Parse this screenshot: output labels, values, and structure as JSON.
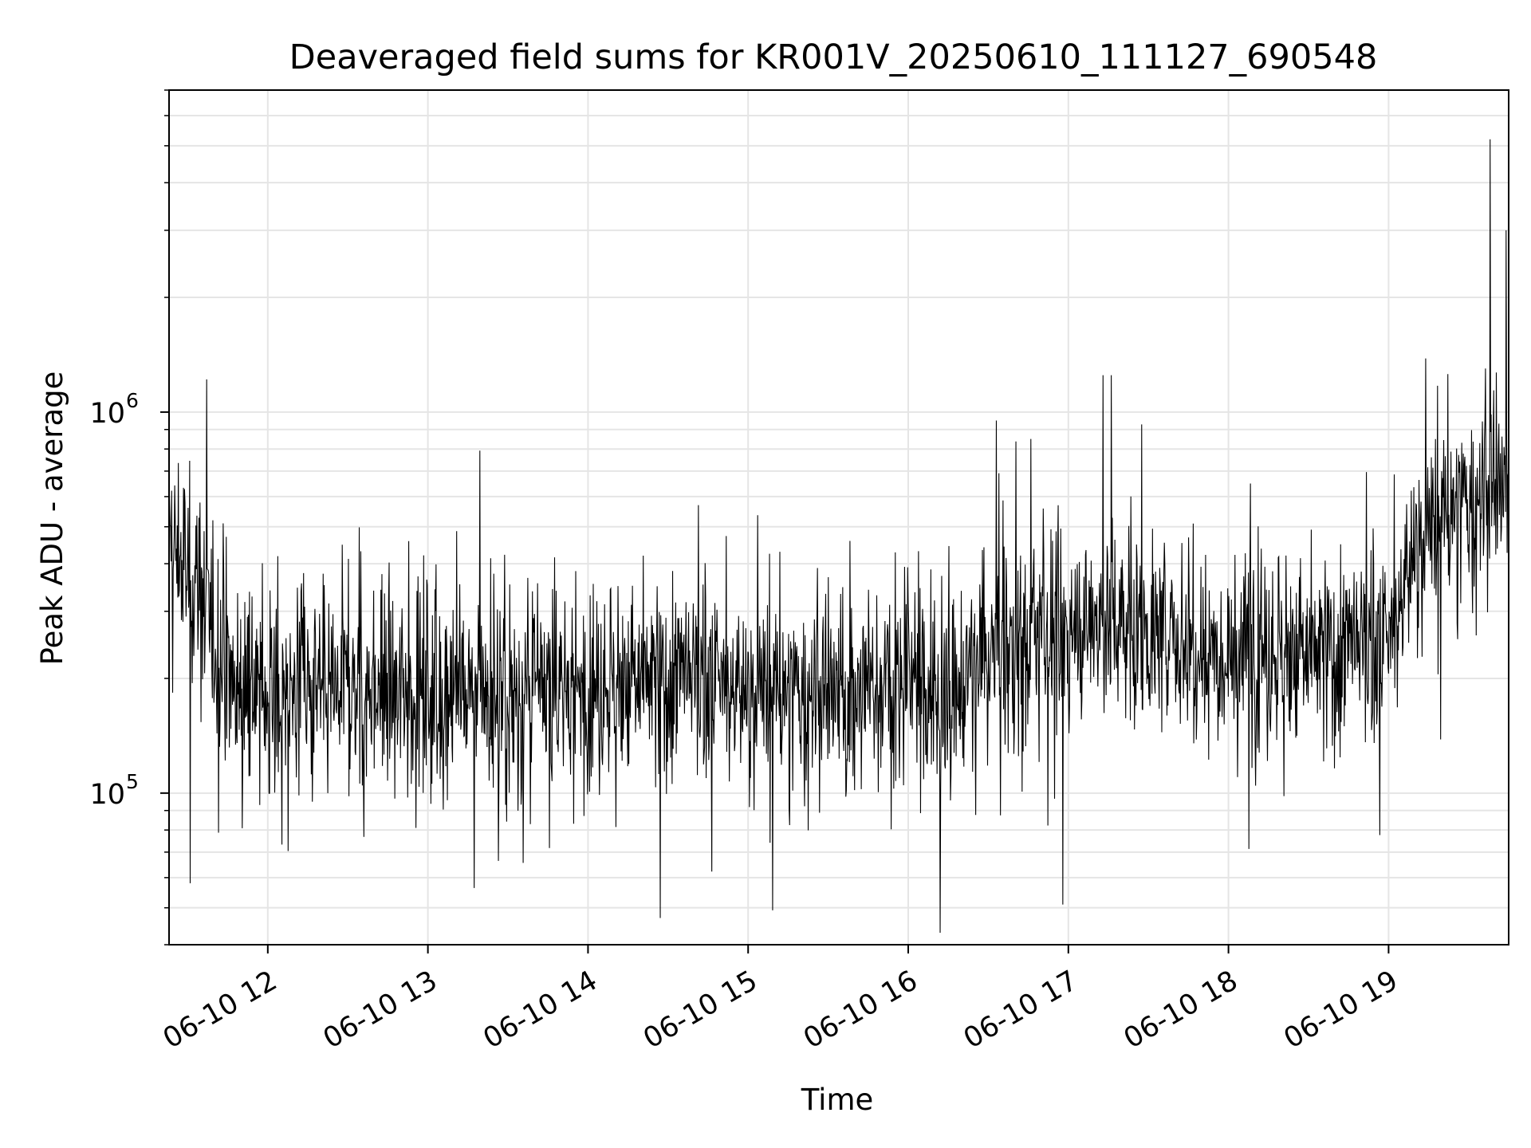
{
  "chart_data": {
    "type": "line",
    "title": "Deaveraged field sums for KR001V_20250610_111127_690548",
    "xlabel": "Time",
    "ylabel": "Peak ADU - average",
    "yscale": "log",
    "xlim": [
      "2025-06-10 11:23",
      "2025-06-10 19:45"
    ],
    "ylim": [
      40000,
      7000000
    ],
    "grid": true,
    "line_color": "#000000",
    "grid_color": "#e5e5e5",
    "x_ticks": [
      {
        "label": "06-10 12",
        "value": "2025-06-10 12:00"
      },
      {
        "label": "06-10 13",
        "value": "2025-06-10 13:00"
      },
      {
        "label": "06-10 14",
        "value": "2025-06-10 14:00"
      },
      {
        "label": "06-10 15",
        "value": "2025-06-10 15:00"
      },
      {
        "label": "06-10 16",
        "value": "2025-06-10 16:00"
      },
      {
        "label": "06-10 17",
        "value": "2025-06-10 17:00"
      },
      {
        "label": "06-10 18",
        "value": "2025-06-10 18:00"
      },
      {
        "label": "06-10 19",
        "value": "2025-06-10 19:00"
      }
    ],
    "y_ticks": [
      {
        "base": "10",
        "exp": "5",
        "value": 100000
      },
      {
        "base": "10",
        "exp": "6",
        "value": 1000000
      }
    ],
    "series": [
      {
        "points": [
          {
            "x": "2025-06-10 11:23",
            "y": 450000
          },
          {
            "x": "2025-06-10 11:30",
            "y": 380000
          },
          {
            "x": "2025-06-10 11:38",
            "y": 290000
          },
          {
            "x": "2025-06-10 11:45",
            "y": 200000
          },
          {
            "x": "2025-06-10 12:00",
            "y": 180000
          },
          {
            "x": "2025-06-10 12:30",
            "y": 190000
          },
          {
            "x": "2025-06-10 13:00",
            "y": 185000
          },
          {
            "x": "2025-06-10 13:30",
            "y": 175000
          },
          {
            "x": "2025-06-10 14:00",
            "y": 190000
          },
          {
            "x": "2025-06-10 14:30",
            "y": 200000
          },
          {
            "x": "2025-06-10 15:00",
            "y": 185000
          },
          {
            "x": "2025-06-10 15:30",
            "y": 175000
          },
          {
            "x": "2025-06-10 16:00",
            "y": 200000
          },
          {
            "x": "2025-06-10 16:15",
            "y": 170000
          },
          {
            "x": "2025-06-10 16:30",
            "y": 230000
          },
          {
            "x": "2025-06-10 17:00",
            "y": 270000
          },
          {
            "x": "2025-06-10 17:15",
            "y": 290000
          },
          {
            "x": "2025-06-10 17:30",
            "y": 260000
          },
          {
            "x": "2025-06-10 18:00",
            "y": 240000
          },
          {
            "x": "2025-06-10 18:30",
            "y": 230000
          },
          {
            "x": "2025-06-10 19:00",
            "y": 240000
          },
          {
            "x": "2025-06-10 19:10",
            "y": 450000
          },
          {
            "x": "2025-06-10 19:25",
            "y": 550000
          },
          {
            "x": "2025-06-10 19:45",
            "y": 620000
          }
        ],
        "spikes_high": [
          {
            "x": "2025-06-10 16:33",
            "y": 950000
          },
          {
            "x": "2025-06-10 16:46",
            "y": 850000
          },
          {
            "x": "2025-06-10 17:13",
            "y": 1250000
          },
          {
            "x": "2025-06-10 17:16",
            "y": 1250000
          },
          {
            "x": "2025-06-10 19:38",
            "y": 5200000
          },
          {
            "x": "2025-06-10 19:44",
            "y": 3000000
          }
        ],
        "spikes_low": [
          {
            "x": "2025-06-10 11:31",
            "y": 58000
          },
          {
            "x": "2025-06-10 14:27",
            "y": 47000
          },
          {
            "x": "2025-06-10 16:12",
            "y": 43000
          },
          {
            "x": "2025-06-10 16:58",
            "y": 51000
          }
        ]
      }
    ]
  }
}
